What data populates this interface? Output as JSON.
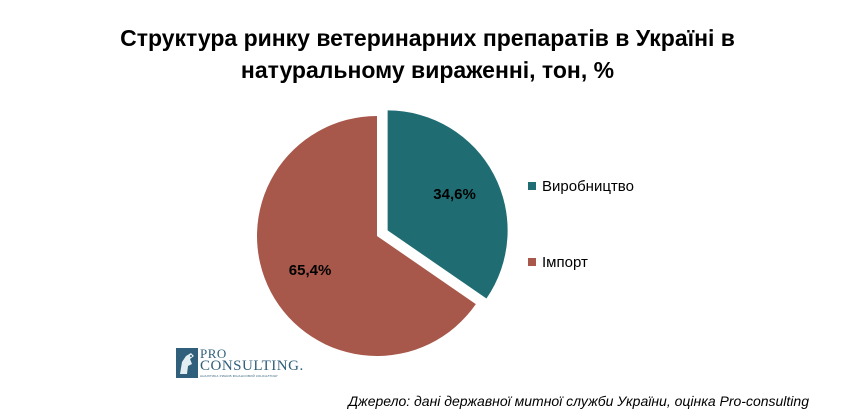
{
  "chart_data": {
    "type": "pie",
    "title_lines": [
      "Структура  ринку ветеринарних препаратів в Україні в",
      "натуральному вираженні, тон, %"
    ],
    "slices": [
      {
        "name": "Виробництво",
        "value": 34.6,
        "label": "34,6%",
        "color": "#1f6d72",
        "exploded": true
      },
      {
        "name": "Імпорт",
        "value": 65.4,
        "label": "65,4%",
        "color": "#a8584b",
        "exploded": false
      }
    ],
    "legend_position": "right"
  },
  "logo": {
    "line1": "PRO",
    "line2": "CONSULTING.",
    "tagline": "АНАЛІТИКА РИНКІВ ФІНАНСОВИЙ КОНСАЛТИНГ"
  },
  "source": "Джерело: дані державної митної служби України, оцінка Pro-consulting"
}
